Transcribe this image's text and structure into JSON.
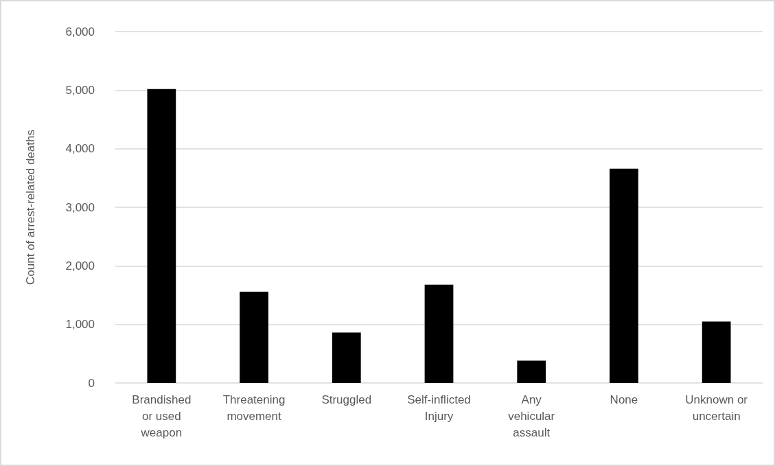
{
  "chart_data": {
    "type": "bar",
    "ylabel": "Count of arrest-related deaths",
    "categories": [
      "Brandished or used weapon",
      "Threatening movement",
      "Struggled",
      "Self-inflicted Injury",
      "Any vehicular assault",
      "None",
      "Unknown or uncertain"
    ],
    "values": [
      5020,
      1560,
      860,
      1680,
      380,
      3660,
      1050
    ],
    "color": "#000000",
    "ylim": [
      0,
      6000
    ],
    "yticks": [
      0,
      {
        "value": 1000,
        "label": "1,000"
      },
      {
        "value": 2000,
        "label": "2,000"
      },
      {
        "value": 3000,
        "label": "3,000"
      },
      {
        "value": 4000,
        "label": "4,000"
      },
      {
        "value": 5000,
        "label": "5,000"
      },
      {
        "value": 6000,
        "label": "6,000"
      }
    ],
    "grid": "y"
  }
}
